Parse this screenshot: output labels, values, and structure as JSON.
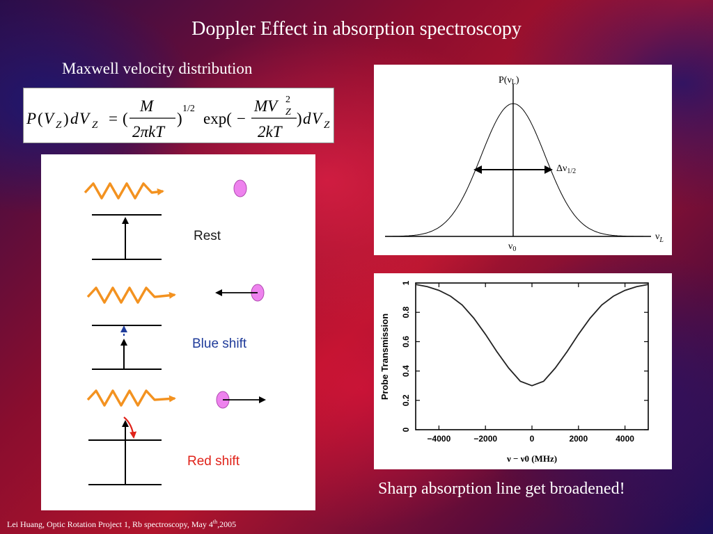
{
  "slide": {
    "title": "Doppler Effect in absorption spectroscopy",
    "subtitle": "Maxwell velocity distribution",
    "caption": "Sharp absorption line get broadened!",
    "footer": {
      "text_before": "Lei Huang, Optic Rotation Project 1, Rb spectroscopy, May 4",
      "superscript": "th",
      "text_after": ",2005"
    }
  },
  "formula": {
    "lhs_P": "P",
    "lhs_paren_open": "(",
    "lhs_V": "V",
    "lhs_Z": "Z",
    "lhs_paren_close": ")",
    "lhs_d": "d",
    "lhs_V2": "V",
    "lhs_Z2": "Z",
    "equals": "=",
    "open_paren": "(",
    "frac1_num": "M",
    "frac1_den": "2πkT",
    "close_paren": ")",
    "exponent": "1/2",
    "exp": "exp(",
    "minus": "−",
    "frac2_num": "MV",
    "frac2_num_sup": "2",
    "frac2_num_sub": "Z",
    "frac2_den": "2kT",
    "rhs_close": ")",
    "rhs_d": "d",
    "rhs_V": "V",
    "rhs_Z": "Z"
  },
  "doppler_diagram": {
    "labels": {
      "rest": "Rest",
      "blue": "Blue shift",
      "red": "Red shift"
    },
    "colors": {
      "photon": "#f39220",
      "atom": "#ee82ee",
      "blue": "#1f3b9a",
      "red": "#e0231a",
      "text": "#1a1a1a"
    }
  },
  "gaussian_plot": {
    "ylabel_text": "P(ν",
    "ylabel_sub": "L",
    "ylabel_close": ")",
    "width_label": "Δν",
    "width_sub": "1/2",
    "center_label": "ν",
    "center_sub": "0",
    "xlabel": "ν",
    "xlabel_sub": "L"
  },
  "chart_data": {
    "type": "line",
    "title": "",
    "xlabel": "ν − ν0 (MHz)",
    "ylabel": "Probe Transmission",
    "xlim": [
      -5000,
      5000
    ],
    "ylim": [
      0,
      1
    ],
    "xticks": [
      -4000,
      -2000,
      0,
      2000,
      4000
    ],
    "xtick_labels": [
      "−4000",
      "−2000",
      "0",
      "2000",
      "4000"
    ],
    "yticks": [
      0,
      0.2,
      0.4,
      0.6,
      0.8,
      1
    ],
    "ytick_labels": [
      "0",
      "0.2",
      "0.4",
      "0.6",
      "0.8",
      "1"
    ],
    "grid": false,
    "series": [
      {
        "x": [
          -5000,
          -4500,
          -4000,
          -3500,
          -3000,
          -2500,
          -2000,
          -1500,
          -1000,
          -500,
          0,
          500,
          1000,
          1500,
          2000,
          2500,
          3000,
          3500,
          4000,
          4500,
          5000
        ],
        "y": [
          0.99,
          0.975,
          0.95,
          0.91,
          0.85,
          0.76,
          0.65,
          0.53,
          0.42,
          0.33,
          0.3,
          0.33,
          0.42,
          0.53,
          0.65,
          0.76,
          0.85,
          0.91,
          0.95,
          0.975,
          0.99
        ]
      }
    ]
  }
}
